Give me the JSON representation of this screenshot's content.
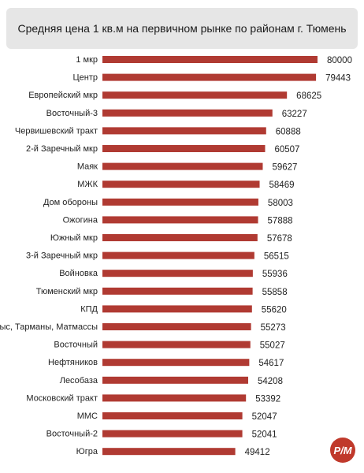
{
  "chart_data": {
    "type": "bar",
    "orientation": "horizontal",
    "title": "Средняя цена 1 кв.м на первичном рынке по районам г. Тюмень",
    "bar_color": "#b03a32",
    "categories": [
      "1 мкр",
      "Центр",
      "Европейский мкр",
      "Восточный-3",
      "Червишевский тракт",
      "2-й Заречный мкр",
      "Маяк",
      "МЖК",
      "Дом обороны",
      "Ожогина",
      "Южный мкр",
      "3-й Заречный мкр",
      "Войновка",
      "Тюменский мкр",
      "КПД",
      "Мыс, Тарманы, Матмассы",
      "Восточный",
      "Нефтяников",
      "Лесобаза",
      "Московский тракт",
      "ММС",
      "Восточный-2",
      "Югра"
    ],
    "values": [
      80000,
      79443,
      68625,
      63227,
      60888,
      60507,
      59627,
      58469,
      58003,
      57888,
      57678,
      56515,
      55936,
      55858,
      55620,
      55273,
      55027,
      54617,
      54208,
      53392,
      52047,
      52041,
      49412
    ]
  },
  "logo": {
    "text": "Р/М",
    "color": "#c0392b"
  }
}
